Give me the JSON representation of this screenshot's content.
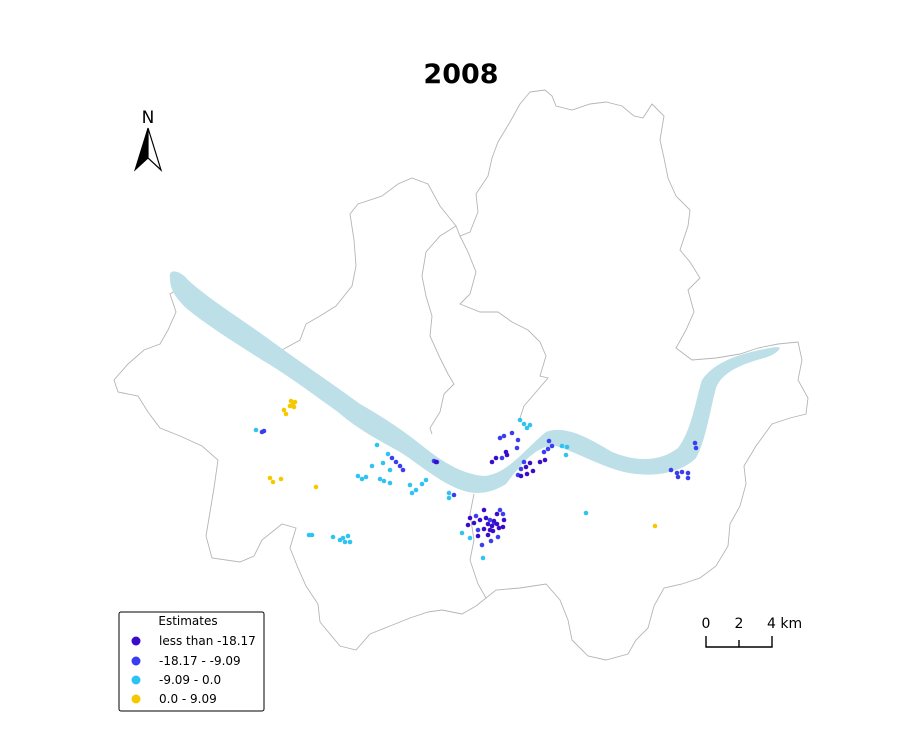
{
  "map": {
    "title": "2008",
    "north_label": "N",
    "scale_bar": {
      "labels": [
        "0",
        "2",
        "4 km"
      ]
    },
    "legend": {
      "title": "Estimates",
      "items": [
        {
          "label": "less than -18.17",
          "color": "#3a0bcc"
        },
        {
          "label": "-18.17 - -9.09",
          "color": "#3b3ef0"
        },
        {
          "label": "-9.09 - 0.0",
          "color": "#2ec3f0"
        },
        {
          "label": "0.0 - 9.09",
          "color": "#f5c800"
        }
      ]
    },
    "colors": {
      "river": "#bcdfe8",
      "boundary": "#b0b0b0"
    }
  }
}
